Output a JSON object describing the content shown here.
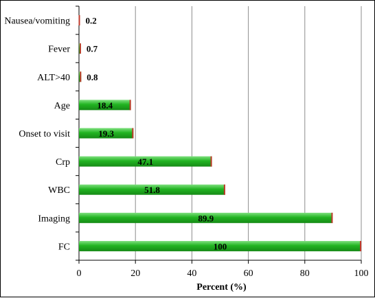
{
  "chart_data": {
    "type": "bar",
    "orientation": "horizontal",
    "categories": [
      "Nausea/vomiting",
      "Fever",
      "ALT>40",
      "Age",
      "Onset to visit",
      "Crp",
      "WBC",
      "Imaging",
      "FC"
    ],
    "values": [
      0.2,
      0.7,
      0.8,
      18.4,
      19.3,
      47.1,
      51.8,
      89.9,
      100
    ],
    "value_labels": [
      "0.2",
      "0.7",
      "0.8",
      "18.4",
      "19.3",
      "47.1",
      "51.8",
      "89.9",
      "100"
    ],
    "xlabel": "Percent (%)",
    "ylabel": "",
    "xlim": [
      0,
      100
    ],
    "xticks": [
      "0",
      "20",
      "40",
      "60",
      "80",
      "100"
    ],
    "grid": "vertical",
    "colors": {
      "bar_fill": "#22b422",
      "bar_edge": "#c0392b",
      "grid": "#8c8c8c"
    }
  }
}
